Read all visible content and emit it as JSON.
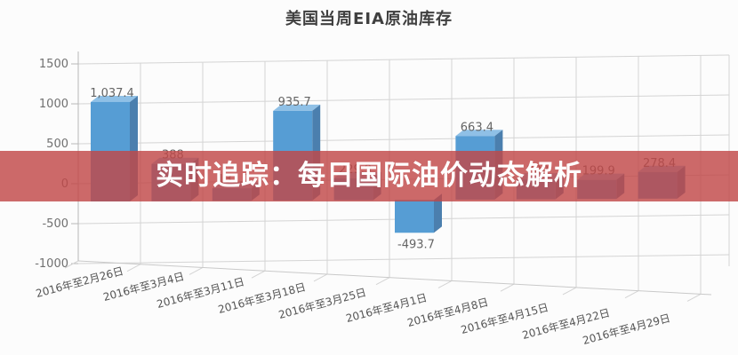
{
  "chart_data": {
    "type": "bar",
    "title": "美国当周EIA原油库存",
    "categories": [
      "2016年至2月26日",
      "2016年至3月4日",
      "2016年至3月11日",
      "2016年至3月18日",
      "2016年至3月25日",
      "2016年至4月1日",
      "2016年至4月8日",
      "2016年至4月15日",
      "2016年至4月22日",
      "2016年至4月29日"
    ],
    "values": [
      1037.4,
      388,
      131.7,
      935.7,
      229.9,
      -493.7,
      663.4,
      208,
      199.9,
      278.4
    ],
    "value_labels": [
      "1,037.4",
      "388",
      "131.7",
      "935.7",
      "229.9",
      "-493.7",
      "663.4",
      "208",
      "199.9",
      "278.4"
    ],
    "y_ticks": [
      1500,
      1000,
      500,
      0,
      -500,
      -1000
    ],
    "ylim": [
      -1000,
      1500
    ],
    "xlabel": "",
    "ylabel": "",
    "grid": true,
    "legend": false,
    "style": "3d-column",
    "colors": {
      "bar_front": "#569dd4",
      "bar_top": "#8fc0e6",
      "bar_side": "#4b7fae",
      "grid": "#d4d4d4",
      "axis": "#b8b8b8",
      "value_label": "#646464",
      "tick_label": "#707070",
      "x_label": "#555555"
    }
  },
  "banner": {
    "text": "实时追踪：每日国际油价动态解析",
    "bg_color": "rgba(193,72,72,0.82)",
    "text_color": "#ffffff"
  }
}
